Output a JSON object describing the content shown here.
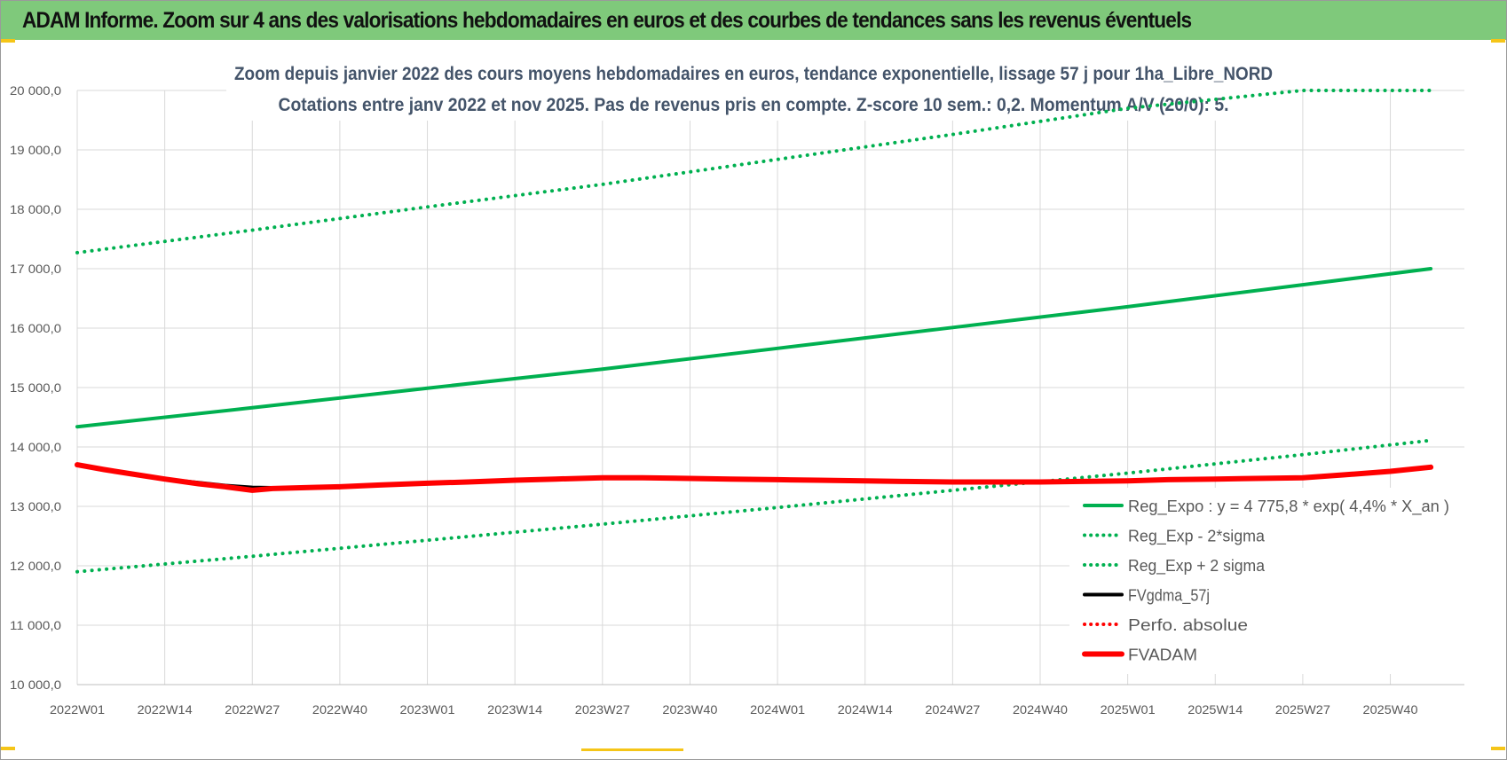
{
  "banner": {
    "title": "ADAM Informe. Zoom sur 4 ans des valorisations hebdomadaires en euros et des courbes de tendances sans les revenus éventuels",
    "background": "#7fc97b"
  },
  "chart_data": {
    "type": "line",
    "title": "Zoom depuis janvier 2022 des cours moyens hebdomadaires en euros, tendance exponentielle, lissage 57 j pour 1ha_Libre_NORD",
    "subtitle": "Cotations entre janv 2022 et nov 2025. Pas de revenus pris en compte. Z-score 10 sem.: 0,2. Momentum A/V (20/0): 5.",
    "xlabel": "",
    "ylabel": "",
    "ylim": [
      10000,
      20000
    ],
    "yticks": [
      "20 000,0",
      "19 000,0",
      "18 000,0",
      "17 000,0",
      "16 000,0",
      "15 000,0",
      "14 000,0",
      "13 000,0",
      "12 000,0",
      "11 000,0",
      "10 000,0"
    ],
    "x_tick_labels": [
      "2022W01",
      "2022W14",
      "2022W27",
      "2022W40",
      "2023W01",
      "2023W14",
      "2023W27",
      "2023W40",
      "2024W01",
      "2024W14",
      "2024W27",
      "2024W40",
      "2025W01",
      "2025W14",
      "2025W27",
      "2025W40"
    ],
    "x_range_weeks": [
      0,
      206
    ],
    "grid": true,
    "legend_position": "bottom-right",
    "series": [
      {
        "name": "Reg_Expo : y = 4 775,8 * exp( 4,4% *  X_an )",
        "color": "#00b050",
        "style": "solid",
        "x": [
          "2022W01",
          "2022W27",
          "2023W01",
          "2023W27",
          "2024W01",
          "2024W27",
          "2025W01",
          "2025W27",
          "2025W46"
        ],
        "values": [
          14340,
          14660,
          14990,
          15310,
          15660,
          16010,
          16360,
          16730,
          17000
        ]
      },
      {
        "name": "Reg_Exp - 2*sigma",
        "color": "#00b050",
        "style": "dotted",
        "x": [
          "2022W01",
          "2022W27",
          "2023W01",
          "2023W27",
          "2024W01",
          "2024W27",
          "2025W01",
          "2025W27",
          "2025W46"
        ],
        "values": [
          11900,
          12160,
          12430,
          12700,
          12980,
          13270,
          13560,
          13870,
          14110
        ]
      },
      {
        "name": "Reg_Exp + 2 sigma",
        "color": "#00b050",
        "style": "dotted",
        "x": [
          "2022W01",
          "2022W27",
          "2023W01",
          "2023W27",
          "2024W01",
          "2024W27",
          "2025W01",
          "2025W27",
          "2025W46"
        ],
        "values": [
          17270,
          17650,
          18040,
          18420,
          18840,
          19260,
          19700,
          20000,
          20000
        ]
      },
      {
        "name": "FVgdma_57j",
        "color": "#000000",
        "style": "solid",
        "x": [
          "2022W01",
          "2022W05",
          "2022W10",
          "2022W14",
          "2022W19",
          "2022W23",
          "2022W27",
          "2022W32",
          "2022W36",
          "2022W40"
        ],
        "values": [
          13700,
          13620,
          13520,
          13460,
          13400,
          13350,
          13320,
          13310,
          13310,
          13320
        ]
      },
      {
        "name": "Perfo. absolue",
        "color": "#ff0000",
        "style": "dotted",
        "x": [],
        "values": []
      },
      {
        "name": "FVADAM",
        "color": "#ff0000",
        "style": "solid",
        "x": [
          "2022W01",
          "2022W05",
          "2022W10",
          "2022W14",
          "2022W19",
          "2022W23",
          "2022W27",
          "2022W30",
          "2022W36",
          "2022W40",
          "2022W46",
          "2023W01",
          "2023W07",
          "2023W14",
          "2023W20",
          "2023W27",
          "2023W33",
          "2023W40",
          "2023W46",
          "2024W01",
          "2024W07",
          "2024W14",
          "2024W20",
          "2024W27",
          "2024W33",
          "2024W40",
          "2024W46",
          "2025W01",
          "2025W07",
          "2025W14",
          "2025W20",
          "2025W27",
          "2025W33",
          "2025W40",
          "2025W46"
        ],
        "values": [
          13700,
          13620,
          13530,
          13460,
          13380,
          13330,
          13270,
          13300,
          13320,
          13330,
          13360,
          13390,
          13410,
          13440,
          13460,
          13480,
          13480,
          13470,
          13460,
          13450,
          13440,
          13430,
          13420,
          13410,
          13410,
          13410,
          13420,
          13430,
          13450,
          13460,
          13470,
          13480,
          13530,
          13590,
          13660
        ]
      }
    ]
  }
}
